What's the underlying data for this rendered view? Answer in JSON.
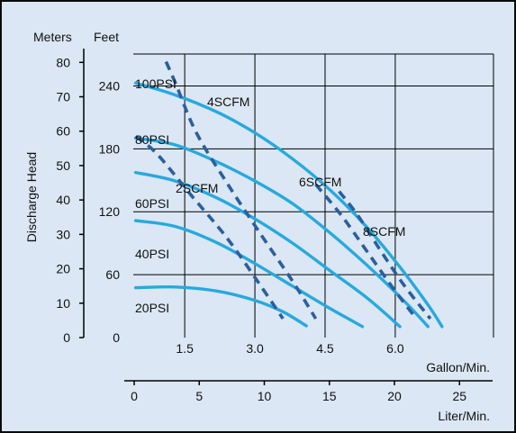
{
  "chart_data": {
    "type": "line",
    "axes": {
      "left_unit_label": "Meters",
      "left_title": "Discharge Head",
      "left_ticks": [
        "0",
        "10",
        "20",
        "30",
        "40",
        "50",
        "60",
        "70",
        "80"
      ],
      "left_ylim": [
        0,
        84
      ],
      "feet_unit_label": "Feet",
      "feet_ticks": [
        "0",
        "60",
        "120",
        "180",
        "240"
      ],
      "x_gpm_label": "Gallon/Min.",
      "x_gpm_ticks": [
        "1.5",
        "3.0",
        "4.5",
        "6.0"
      ],
      "x_gpm_range": [
        0.4,
        8.1
      ],
      "x_lpm_label": "Liter/Min.",
      "x_lpm_ticks": [
        "0",
        "5",
        "10",
        "15",
        "20",
        "25"
      ]
    },
    "grid": true,
    "colors": {
      "background": "#dbe7f4",
      "border": "#0a0a0a",
      "psi_curve": "#27a9de",
      "scfm_curve": "#2b5f9e",
      "grid": "#000000"
    },
    "series": [
      {
        "name": "20PSI",
        "kind": "psi",
        "label": "20PSI",
        "points": [
          [
            0.45,
            14.5
          ],
          [
            1.3,
            14.7
          ],
          [
            2.2,
            13.5
          ],
          [
            3.0,
            10.8
          ],
          [
            3.6,
            7.5
          ],
          [
            4.1,
            3.4
          ]
        ]
      },
      {
        "name": "40PSI",
        "kind": "psi",
        "label": "40PSI",
        "points": [
          [
            0.45,
            34
          ],
          [
            1.3,
            32.3
          ],
          [
            2.2,
            27.5
          ],
          [
            3.0,
            21.5
          ],
          [
            3.8,
            15
          ],
          [
            4.6,
            8.5
          ],
          [
            5.3,
            3.2
          ]
        ]
      },
      {
        "name": "60PSI",
        "kind": "psi",
        "label": "60PSI",
        "points": [
          [
            0.45,
            48
          ],
          [
            1.3,
            45.5
          ],
          [
            2.2,
            40.5
          ],
          [
            3.0,
            34.5
          ],
          [
            3.8,
            27.5
          ],
          [
            4.6,
            19.5
          ],
          [
            5.4,
            11.5
          ],
          [
            6.1,
            3.2
          ]
        ]
      },
      {
        "name": "80PSI",
        "kind": "psi",
        "label": "80PSI",
        "points": [
          [
            0.45,
            58
          ],
          [
            1.3,
            56
          ],
          [
            2.2,
            51
          ],
          [
            3.0,
            45.5
          ],
          [
            3.8,
            39
          ],
          [
            4.6,
            30.5
          ],
          [
            5.4,
            21
          ],
          [
            6.2,
            10.5
          ],
          [
            6.7,
            3.2
          ]
        ]
      },
      {
        "name": "100PSI",
        "kind": "psi",
        "label": "100PSI",
        "points": [
          [
            0.45,
            74
          ],
          [
            1.3,
            70.5
          ],
          [
            2.2,
            65.5
          ],
          [
            3.0,
            59.5
          ],
          [
            3.8,
            52
          ],
          [
            4.6,
            43
          ],
          [
            5.4,
            32
          ],
          [
            6.1,
            20.5
          ],
          [
            6.7,
            9.5
          ],
          [
            7.0,
            3.2
          ]
        ]
      },
      {
        "name": "2SCFM",
        "kind": "scfm",
        "label": "2SCFM",
        "points": [
          [
            0.45,
            58.5
          ],
          [
            0.9,
            53.5
          ],
          [
            1.6,
            42
          ],
          [
            2.4,
            29
          ],
          [
            3.1,
            15.5
          ],
          [
            3.6,
            5.5
          ]
        ]
      },
      {
        "name": "4SCFM",
        "kind": "scfm",
        "label": "4SCFM",
        "points": [
          [
            1.1,
            80.2
          ],
          [
            1.3,
            74
          ],
          [
            1.75,
            59.5
          ],
          [
            2.4,
            45
          ],
          [
            3.1,
            30.5
          ],
          [
            3.8,
            16.5
          ],
          [
            4.3,
            5.5
          ]
        ]
      },
      {
        "name": "6SCFM",
        "kind": "scfm",
        "label": "6SCFM",
        "points": [
          [
            4.3,
            44.5
          ],
          [
            4.85,
            35.5
          ],
          [
            5.4,
            25
          ],
          [
            6.0,
            13.5
          ],
          [
            6.45,
            5.5
          ]
        ]
      },
      {
        "name": "8SCFM",
        "kind": "scfm",
        "label": "8SCFM",
        "points": [
          [
            4.8,
            42.5
          ],
          [
            5.2,
            35.5
          ],
          [
            5.7,
            25
          ],
          [
            6.2,
            15
          ],
          [
            6.75,
            5.5
          ]
        ]
      }
    ]
  }
}
